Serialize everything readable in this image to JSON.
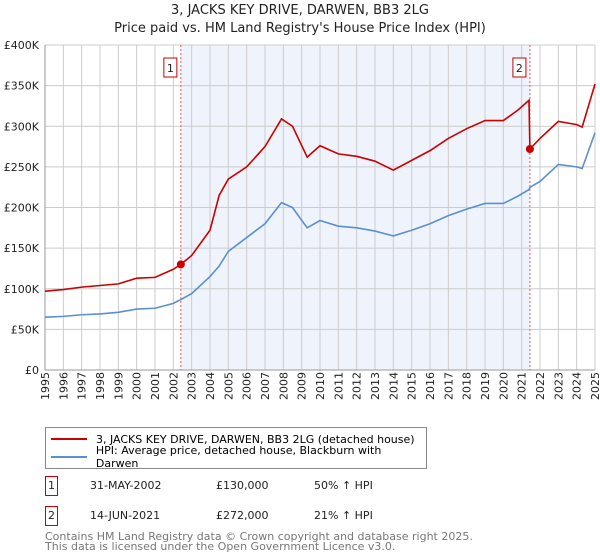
{
  "chart_data": {
    "type": "line",
    "title": "3, JACKS KEY DRIVE, DARWEN, BB3 2LG",
    "subtitle": "Price paid vs. HM Land Registry's House Price Index (HPI)",
    "xlim": [
      1995,
      2025
    ],
    "ylim": [
      0,
      400000
    ],
    "x_ticks": [
      "1995",
      "1996",
      "1997",
      "1998",
      "1999",
      "2000",
      "2001",
      "2002",
      "2003",
      "2004",
      "2005",
      "2006",
      "2007",
      "2008",
      "2009",
      "2010",
      "2011",
      "2012",
      "2013",
      "2014",
      "2015",
      "2016",
      "2017",
      "2018",
      "2019",
      "2020",
      "2021",
      "2022",
      "2023",
      "2024",
      "2025"
    ],
    "y_ticks": [
      {
        "v": 0,
        "label": "£0"
      },
      {
        "v": 50000,
        "label": "£50K"
      },
      {
        "v": 100000,
        "label": "£100K"
      },
      {
        "v": 150000,
        "label": "£150K"
      },
      {
        "v": 200000,
        "label": "£200K"
      },
      {
        "v": 250000,
        "label": "£250K"
      },
      {
        "v": 300000,
        "label": "£300K"
      },
      {
        "v": 350000,
        "label": "£350K"
      },
      {
        "v": 400000,
        "label": "£400K"
      }
    ],
    "grid": true,
    "shaded_range": [
      2002.41,
      2021.45
    ],
    "series": [
      {
        "name": "3, JACKS KEY DRIVE, DARWEN, BB3 2LG (detached house)",
        "color": "#cc0000",
        "x": [
          1995,
          1996,
          1997,
          1998,
          1999,
          2000,
          2001,
          2002,
          2002.41,
          2003,
          2004,
          2004.5,
          2005,
          2006,
          2007,
          2007.9,
          2008.5,
          2009.3,
          2010,
          2011,
          2012,
          2013,
          2014,
          2015,
          2016,
          2017,
          2018,
          2019,
          2020,
          2020.8,
          2021.4,
          2021.45,
          2022,
          2023,
          2024,
          2024.3,
          2025
        ],
        "y": [
          97000,
          99000,
          102000,
          104000,
          106000,
          113000,
          114000,
          124000,
          130000,
          141000,
          172000,
          215000,
          235000,
          250000,
          275000,
          309000,
          300000,
          262000,
          276000,
          266000,
          263000,
          257000,
          246000,
          258000,
          270000,
          285000,
          297000,
          307000,
          307000,
          320000,
          332000,
          272000,
          285000,
          306000,
          302000,
          299000,
          352000
        ]
      },
      {
        "name": "HPI: Average price, detached house, Blackburn with Darwen",
        "color": "#5b8fd0",
        "x": [
          1995,
          1996,
          1997,
          1998,
          1999,
          2000,
          2001,
          2002,
          2002.41,
          2003,
          2004,
          2004.5,
          2005,
          2006,
          2007,
          2007.9,
          2008.5,
          2009.3,
          2010,
          2011,
          2012,
          2013,
          2014,
          2015,
          2016,
          2017,
          2018,
          2019,
          2020,
          2020.8,
          2021.4,
          2021.45,
          2022,
          2023,
          2024,
          2024.3,
          2025
        ],
        "y": [
          65000,
          66000,
          68000,
          69000,
          71000,
          75000,
          76000,
          82000,
          86700,
          94000,
          115000,
          128000,
          146000,
          163000,
          180000,
          206000,
          200000,
          175000,
          184000,
          177000,
          175000,
          171000,
          165000,
          172000,
          180000,
          190000,
          198000,
          205000,
          205000,
          214000,
          222000,
          224800,
          232000,
          253000,
          250000,
          248000,
          292000
        ]
      }
    ],
    "annotations": [
      {
        "label": "1",
        "x": 2002.41,
        "y": 130000
      },
      {
        "label": "2",
        "x": 2021.45,
        "y": 272000
      }
    ]
  },
  "legend": {
    "items": [
      "3, JACKS KEY DRIVE, DARWEN, BB3 2LG (detached house)",
      "HPI: Average price, detached house, Blackburn with Darwen"
    ]
  },
  "transactions": [
    {
      "num": "1",
      "date": "31-MAY-2002",
      "price": "£130,000",
      "hpi": "50% ↑ HPI"
    },
    {
      "num": "2",
      "date": "14-JUN-2021",
      "price": "£272,000",
      "hpi": "21% ↑ HPI"
    }
  ],
  "footer": {
    "line1": "Contains HM Land Registry data © Crown copyright and database right 2025.",
    "line2": "This data is licensed under the Open Government Licence v3.0."
  }
}
